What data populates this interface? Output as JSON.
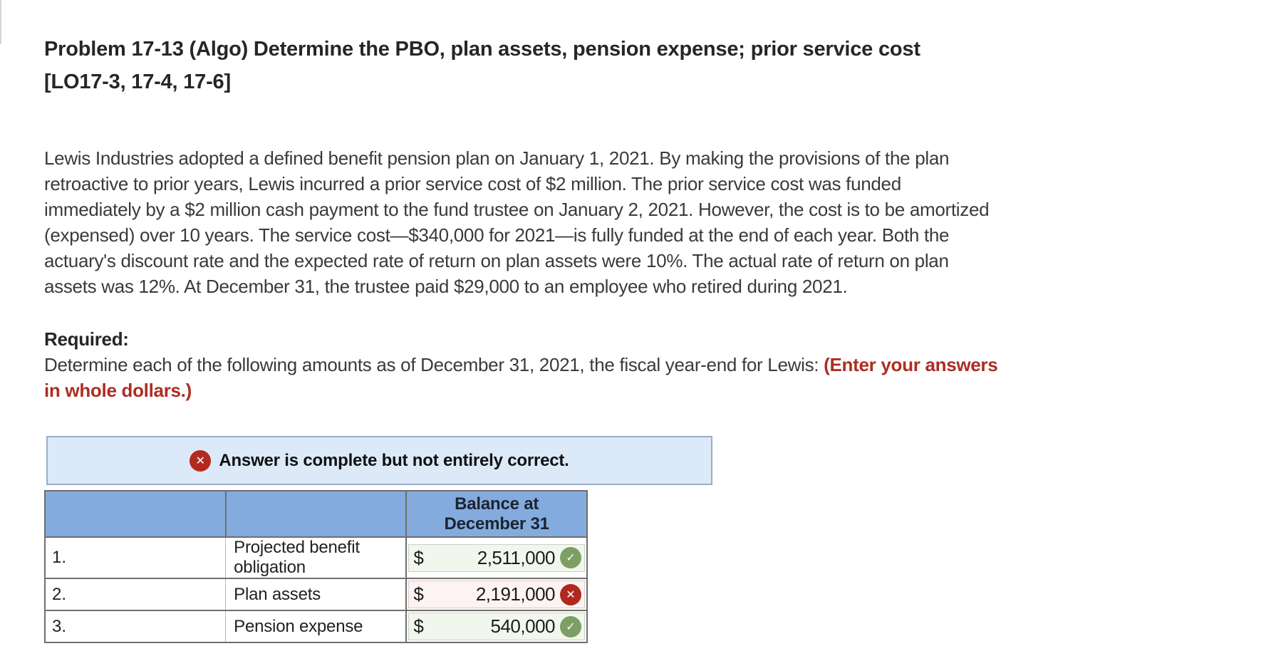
{
  "title": {
    "line1": "Problem 17-13 (Algo) Determine the PBO, plan assets, pension expense; prior service cost",
    "line2": "[LO17-3, 17-4, 17-6]"
  },
  "paragraph": {
    "lines": [
      "Lewis Industries adopted a defined benefit pension plan on January 1, 2021. By making the provisions of the plan",
      "retroactive to prior years, Lewis incurred a prior service cost of $2 million. The prior service cost was funded",
      "immediately by a $2 million cash payment to the fund trustee on January 2, 2021. However, the cost is to be amortized",
      "(expensed) over 10 years. The service cost—$340,000 for 2021—is fully funded at the end of each year. Both the",
      "actuary's discount rate and the expected rate of return on plan assets were 10%. The actual rate of return on plan",
      "assets was 12%. At December 31, the trustee paid $29,000 to an employee who retired during 2021."
    ]
  },
  "required": {
    "label": "Required:",
    "instruction_black": "Determine each of the following amounts as of December 31, 2021, the fiscal year-end for Lewis: ",
    "instruction_red_line1": "(Enter your answers",
    "instruction_red_line2": "in whole dollars.)"
  },
  "banner": {
    "icon_name": "x-circle-icon",
    "icon_glyph": "✕",
    "text": "Answer is complete but not entirely correct."
  },
  "table": {
    "header": {
      "col1": "",
      "col2": "",
      "col3_line1": "Balance at",
      "col3_line2": "December 31"
    },
    "rows": [
      {
        "num": "1.",
        "label": "Projected benefit obligation",
        "currency": "$",
        "value": "2,511,000",
        "status": "correct"
      },
      {
        "num": "2.",
        "label": "Plan assets",
        "currency": "$",
        "value": "2,191,000",
        "status": "incorrect"
      },
      {
        "num": "3.",
        "label": "Pension expense",
        "currency": "$",
        "value": "540,000",
        "status": "correct"
      }
    ]
  },
  "icons": {
    "check_glyph": "✓",
    "cross_glyph": "✕"
  },
  "colors": {
    "accent_red_text": "#ab2e22",
    "banner_bg": "#dbe9f8",
    "banner_border": "#9badc7",
    "banner_icon_red": "#b22a1e",
    "table_header_blue": "#84abdd",
    "table_border_gray": "#6e6e6e",
    "correct_icon_green": "#7d9f63",
    "incorrect_icon_red": "#b0281e",
    "correct_cell_bg": "#f2f7ee",
    "incorrect_cell_bg": "#fcf3f2"
  }
}
